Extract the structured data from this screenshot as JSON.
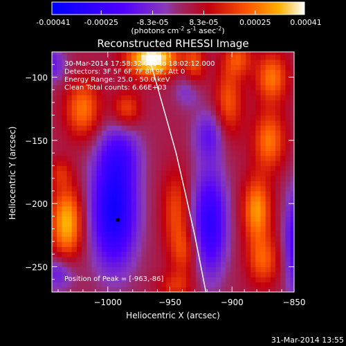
{
  "chart_data": {
    "type": "heatmap",
    "title": "Reconstructed RHESSI Image",
    "xlabel": "Heliocentric X (arcsec)",
    "ylabel": "Heliocentric Y (arcsec)",
    "xlim": [
      -1045,
      -850
    ],
    "ylim": [
      -270,
      -80
    ],
    "x_ticks": [
      -1000,
      -950,
      -900,
      -850
    ],
    "y_ticks": [
      -100,
      -150,
      -200,
      -250
    ],
    "colorbar": {
      "range": [
        -0.00041,
        0.00041
      ],
      "tick_values": [
        -0.00041,
        -0.00025,
        -8.3e-05,
        8.3e-05,
        0.00025,
        0.00041
      ],
      "tick_labels": [
        "-0.00041",
        "-0.00025",
        "-8.3e-05",
        "8.3e-05",
        "0.00025",
        "0.00041"
      ],
      "units_prefix": "(photons cm",
      "units_exp1": "-2",
      "units_mid": " s",
      "units_exp2": "-1",
      "units_mid2": " asec",
      "units_exp3": "-2",
      "units_suffix": ")"
    },
    "info_lines": [
      "30-Mar-2014 17:58:32.000 to 18:02:12.000",
      "Detectors: 3F 5F 6F 7F 8F 9F, Att 0",
      "Energy Range: 25.0 - 50.0 keV",
      "Clean     Total counts: 6.66E+03"
    ],
    "peak_label": "Position of Peak = [-963,-86]",
    "peak": {
      "x": -963,
      "y": -86
    },
    "marker": {
      "x": -992,
      "y": -213
    },
    "limb_curve": [
      [
        -968,
        -80
      ],
      [
        -955,
        -125
      ],
      [
        -945,
        -160
      ],
      [
        -938,
        -190
      ],
      [
        -930,
        -225
      ],
      [
        -921,
        -270
      ]
    ],
    "blobs": [
      {
        "x": -964,
        "y": -85,
        "amp": 1.0,
        "sx": 14,
        "sy": 10
      },
      {
        "x": -1020,
        "y": -125,
        "amp": 0.55,
        "sx": 10,
        "sy": 16
      },
      {
        "x": -985,
        "y": -125,
        "amp": 0.42,
        "sx": 8,
        "sy": 10
      },
      {
        "x": -930,
        "y": -90,
        "amp": 0.4,
        "sx": 6,
        "sy": 14
      },
      {
        "x": -903,
        "y": -120,
        "amp": 0.45,
        "sx": 8,
        "sy": 20
      },
      {
        "x": -895,
        "y": -85,
        "amp": 0.4,
        "sx": 8,
        "sy": 10
      },
      {
        "x": -868,
        "y": -100,
        "amp": 0.55,
        "sx": 9,
        "sy": 14
      },
      {
        "x": -870,
        "y": -150,
        "amp": 0.55,
        "sx": 9,
        "sy": 16
      },
      {
        "x": -880,
        "y": -205,
        "amp": 0.65,
        "sx": 8,
        "sy": 18
      },
      {
        "x": -875,
        "y": -245,
        "amp": 0.45,
        "sx": 9,
        "sy": 14
      },
      {
        "x": -1033,
        "y": -215,
        "amp": 0.75,
        "sx": 9,
        "sy": 20
      },
      {
        "x": -945,
        "y": -205,
        "amp": 0.4,
        "sx": 8,
        "sy": 22
      },
      {
        "x": -938,
        "y": -238,
        "amp": 0.35,
        "sx": 8,
        "sy": 14
      },
      {
        "x": -945,
        "y": -265,
        "amp": 0.3,
        "sx": 10,
        "sy": 8
      },
      {
        "x": -1038,
        "y": -175,
        "amp": 0.25,
        "sx": 6,
        "sy": 8
      },
      {
        "x": -990,
        "y": -160,
        "amp": -0.35,
        "sx": 12,
        "sy": 16
      },
      {
        "x": -995,
        "y": -205,
        "amp": -0.95,
        "sx": 13,
        "sy": 32
      },
      {
        "x": -918,
        "y": -215,
        "amp": -0.75,
        "sx": 10,
        "sy": 30
      },
      {
        "x": -918,
        "y": -145,
        "amp": -0.4,
        "sx": 9,
        "sy": 14
      },
      {
        "x": -1045,
        "y": -90,
        "amp": -0.4,
        "sx": 8,
        "sy": 10
      },
      {
        "x": -850,
        "y": -230,
        "amp": -0.55,
        "sx": 6,
        "sy": 30
      },
      {
        "x": -935,
        "y": -110,
        "amp": -0.3,
        "sx": 8,
        "sy": 10
      },
      {
        "x": -1040,
        "y": -255,
        "amp": -0.4,
        "sx": 10,
        "sy": 10
      }
    ]
  },
  "footer": {
    "timestamp": "31-Mar-2014 13:55"
  }
}
